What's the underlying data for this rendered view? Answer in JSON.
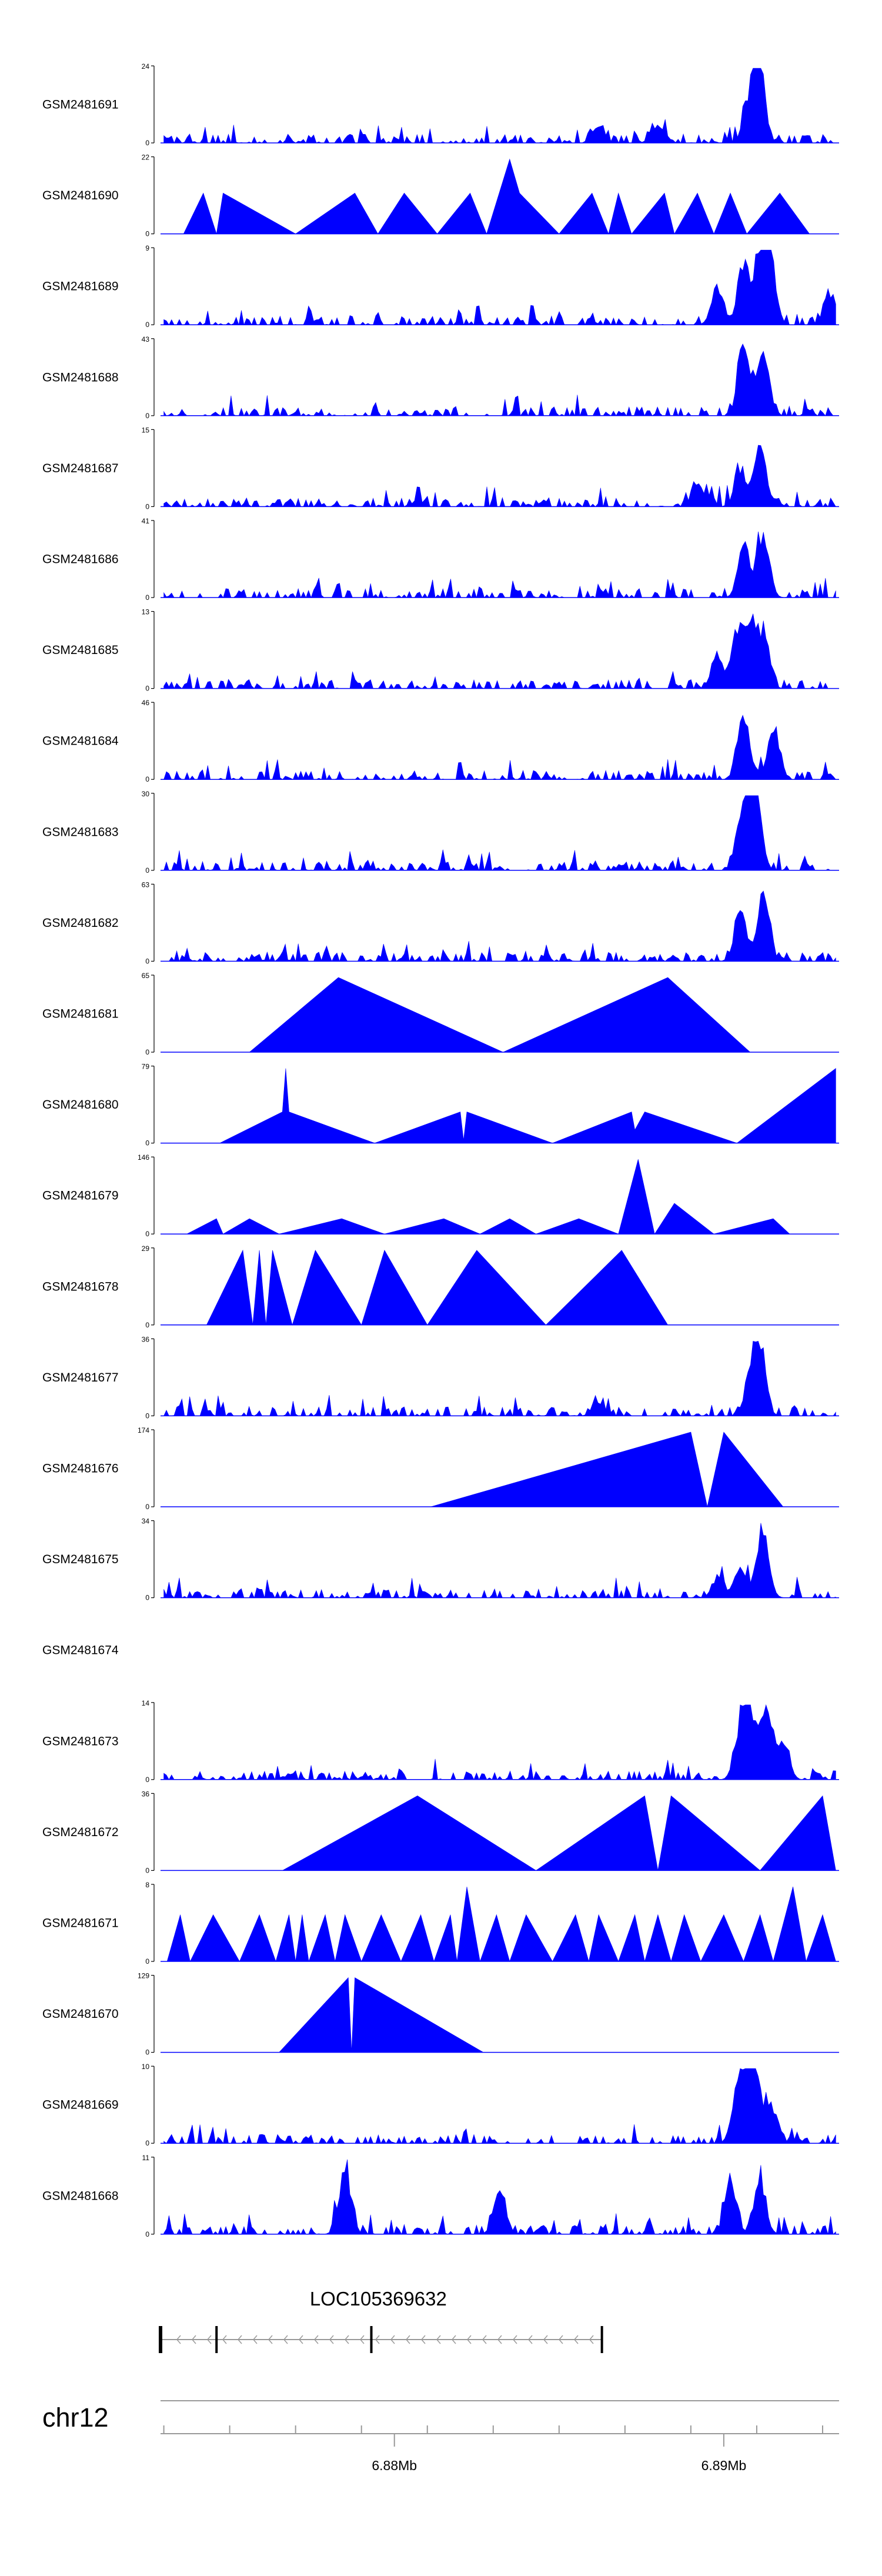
{
  "chart_data": {
    "type": "area",
    "title": "",
    "xlabel": "",
    "ylabel": "",
    "xlim": [
      6.8729,
      6.8935
    ],
    "x_unit": "Mb",
    "axis": {
      "chromosome": "chr12",
      "ticks": [
        6.873,
        6.875,
        6.877,
        6.879,
        6.881,
        6.883,
        6.885,
        6.887,
        6.889,
        6.891,
        6.893
      ],
      "tick_labels": [
        {
          "x": 6.88,
          "label": "6.88Mb"
        },
        {
          "x": 6.89,
          "label": "6.89Mb"
        }
      ]
    },
    "gene": {
      "name": "LOC105369632",
      "strand": "-",
      "start": 6.8729,
      "end": 6.8863,
      "exons": [
        6.8729,
        6.8746,
        6.8793,
        6.8863
      ]
    },
    "colors": {
      "signal": "#0000ff",
      "axis": "#000000",
      "ruler": "#999999"
    },
    "series": [
      {
        "name": "GSM2481691",
        "ymax": 24,
        "style": "spiky",
        "peaks": [
          [
            6.8879,
            3
          ],
          [
            6.8881,
            4
          ],
          [
            6.8907,
            8
          ],
          [
            6.891,
            24
          ],
          [
            6.8911,
            14
          ],
          [
            6.8862,
            6
          ]
        ]
      },
      {
        "name": "GSM2481690",
        "ymax": 22,
        "style": "tri",
        "points": [
          [
            6.8736,
            0
          ],
          [
            6.8742,
            12
          ],
          [
            6.8746,
            0
          ],
          [
            6.8748,
            12
          ],
          [
            6.877,
            0
          ],
          [
            6.8788,
            12
          ],
          [
            6.8795,
            0
          ],
          [
            6.8803,
            12
          ],
          [
            6.8813,
            0
          ],
          [
            6.8823,
            12
          ],
          [
            6.8828,
            0
          ],
          [
            6.8835,
            22
          ],
          [
            6.8838,
            12
          ],
          [
            6.885,
            0
          ],
          [
            6.886,
            12
          ],
          [
            6.8865,
            0
          ],
          [
            6.8868,
            12
          ],
          [
            6.8872,
            0
          ],
          [
            6.8882,
            12
          ],
          [
            6.8885,
            0
          ],
          [
            6.8892,
            12
          ],
          [
            6.8897,
            0
          ],
          [
            6.8902,
            12
          ],
          [
            6.8907,
            0
          ],
          [
            6.8917,
            12
          ],
          [
            6.8926,
            0
          ]
        ]
      },
      {
        "name": "GSM2481689",
        "ymax": 9,
        "style": "spiky",
        "peaks": [
          [
            6.8906,
            8
          ],
          [
            6.8911,
            9
          ],
          [
            6.8914,
            9
          ],
          [
            6.8898,
            5
          ],
          [
            6.8932,
            4
          ]
        ]
      },
      {
        "name": "GSM2481688",
        "ymax": 43,
        "style": "spiky",
        "peaks": [
          [
            6.8906,
            42
          ],
          [
            6.8912,
            41
          ]
        ]
      },
      {
        "name": "GSM2481687",
        "ymax": 15,
        "style": "spiky",
        "peaks": [
          [
            6.8911,
            15
          ],
          [
            6.8905,
            8
          ],
          [
            6.8892,
            5
          ]
        ]
      },
      {
        "name": "GSM2481686",
        "ymax": 41,
        "style": "spiky",
        "peaks": [
          [
            6.8912,
            40
          ],
          [
            6.8906,
            30
          ]
        ]
      },
      {
        "name": "GSM2481685",
        "ymax": 13,
        "style": "spiky",
        "peaks": [
          [
            6.8908,
            13
          ],
          [
            6.8904,
            10
          ],
          [
            6.8912,
            10
          ],
          [
            6.8898,
            6
          ]
        ]
      },
      {
        "name": "GSM2481684",
        "ymax": 46,
        "style": "spiky",
        "peaks": [
          [
            6.8906,
            45
          ],
          [
            6.8915,
            35
          ]
        ]
      },
      {
        "name": "GSM2481683",
        "ymax": 30,
        "style": "spiky",
        "peaks": [
          [
            6.8908,
            28
          ],
          [
            6.891,
            24
          ],
          [
            6.8905,
            18
          ]
        ]
      },
      {
        "name": "GSM2481682",
        "ymax": 63,
        "style": "spiky",
        "peaks": [
          [
            6.8912,
            60
          ],
          [
            6.8905,
            48
          ]
        ]
      },
      {
        "name": "GSM2481681",
        "ymax": 65,
        "style": "tri",
        "points": [
          [
            6.8756,
            0
          ],
          [
            6.8783,
            65
          ],
          [
            6.8833,
            0
          ],
          [
            6.8883,
            65
          ],
          [
            6.8908,
            0
          ]
        ]
      },
      {
        "name": "GSM2481680",
        "ymax": 79,
        "style": "tri",
        "points": [
          [
            6.8747,
            0
          ],
          [
            6.8766,
            33
          ],
          [
            6.8767,
            79
          ],
          [
            6.8768,
            33
          ],
          [
            6.8794,
            0
          ],
          [
            6.882,
            33
          ],
          [
            6.8821,
            3
          ],
          [
            6.8822,
            33
          ],
          [
            6.8848,
            0
          ],
          [
            6.8872,
            33
          ],
          [
            6.8873,
            14
          ],
          [
            6.8876,
            33
          ],
          [
            6.8904,
            0
          ],
          [
            6.8934,
            79
          ],
          [
            6.8934,
            0
          ]
        ]
      },
      {
        "name": "GSM2481679",
        "ymax": 146,
        "style": "tri",
        "points": [
          [
            6.8737,
            0
          ],
          [
            6.8746,
            30
          ],
          [
            6.8748,
            0
          ],
          [
            6.8756,
            30
          ],
          [
            6.8765,
            0
          ],
          [
            6.8784,
            30
          ],
          [
            6.8797,
            0
          ],
          [
            6.8815,
            30
          ],
          [
            6.8826,
            0
          ],
          [
            6.8835,
            30
          ],
          [
            6.8843,
            0
          ],
          [
            6.8856,
            30
          ],
          [
            6.8868,
            0
          ],
          [
            6.8874,
            146
          ],
          [
            6.8879,
            0
          ],
          [
            6.8885,
            60
          ],
          [
            6.8897,
            0
          ],
          [
            6.8915,
            30
          ],
          [
            6.892,
            0
          ]
        ]
      },
      {
        "name": "GSM2481678",
        "ymax": 29,
        "style": "tri",
        "points": [
          [
            6.8743,
            0
          ],
          [
            6.8754,
            29
          ],
          [
            6.8757,
            0
          ],
          [
            6.8759,
            29
          ],
          [
            6.8761,
            0
          ],
          [
            6.8763,
            29
          ],
          [
            6.8769,
            0
          ],
          [
            6.8776,
            29
          ],
          [
            6.879,
            0
          ],
          [
            6.8797,
            29
          ],
          [
            6.881,
            0
          ],
          [
            6.8825,
            29
          ],
          [
            6.8846,
            0
          ],
          [
            6.8869,
            29
          ],
          [
            6.8883,
            0
          ]
        ]
      },
      {
        "name": "GSM2481677",
        "ymax": 36,
        "style": "spiky",
        "peaks": [
          [
            6.8911,
            36
          ],
          [
            6.8908,
            20
          ],
          [
            6.8862,
            8
          ]
        ]
      },
      {
        "name": "GSM2481676",
        "ymax": 174,
        "style": "tri",
        "points": [
          [
            6.8811,
            0
          ],
          [
            6.889,
            174
          ],
          [
            6.8895,
            0
          ],
          [
            6.89,
            174
          ],
          [
            6.8918,
            0
          ]
        ]
      },
      {
        "name": "GSM2481675",
        "ymax": 34,
        "style": "spiky",
        "peaks": [
          [
            6.8912,
            34
          ],
          [
            6.8905,
            15
          ],
          [
            6.8898,
            8
          ]
        ]
      },
      {
        "name": "GSM2481674",
        "ymax": null,
        "style": "empty",
        "points": []
      },
      {
        "name": "GSM2481673",
        "ymax": 14,
        "style": "spiky",
        "peaks": [
          [
            6.8908,
            14
          ],
          [
            6.8913,
            14
          ],
          [
            6.8905,
            10
          ],
          [
            6.8918,
            8
          ]
        ]
      },
      {
        "name": "GSM2481672",
        "ymax": 36,
        "style": "tri",
        "points": [
          [
            6.8766,
            0
          ],
          [
            6.8807,
            36
          ],
          [
            6.8843,
            0
          ],
          [
            6.8876,
            36
          ],
          [
            6.888,
            0
          ],
          [
            6.8884,
            36
          ],
          [
            6.8911,
            0
          ],
          [
            6.893,
            36
          ],
          [
            6.8934,
            0
          ]
        ]
      },
      {
        "name": "GSM2481671",
        "ymax": 8,
        "style": "tri",
        "points": [
          [
            6.8731,
            0
          ],
          [
            6.8735,
            5
          ],
          [
            6.8738,
            0
          ],
          [
            6.8745,
            5
          ],
          [
            6.8753,
            0
          ],
          [
            6.8759,
            5
          ],
          [
            6.8764,
            0
          ],
          [
            6.8768,
            5
          ],
          [
            6.877,
            0
          ],
          [
            6.8772,
            5
          ],
          [
            6.8774,
            0
          ],
          [
            6.8779,
            5
          ],
          [
            6.8782,
            0
          ],
          [
            6.8785,
            5
          ],
          [
            6.879,
            0
          ],
          [
            6.8796,
            5
          ],
          [
            6.8802,
            0
          ],
          [
            6.8808,
            5
          ],
          [
            6.8812,
            0
          ],
          [
            6.8817,
            5
          ],
          [
            6.8819,
            0
          ],
          [
            6.8822,
            8
          ],
          [
            6.8826,
            0
          ],
          [
            6.8831,
            5
          ],
          [
            6.8835,
            0
          ],
          [
            6.884,
            5
          ],
          [
            6.8848,
            0
          ],
          [
            6.8855,
            5
          ],
          [
            6.8859,
            0
          ],
          [
            6.8862,
            5
          ],
          [
            6.8868,
            0
          ],
          [
            6.8873,
            5
          ],
          [
            6.8876,
            0
          ],
          [
            6.888,
            5
          ],
          [
            6.8884,
            0
          ],
          [
            6.8888,
            5
          ],
          [
            6.8893,
            0
          ],
          [
            6.89,
            5
          ],
          [
            6.8906,
            0
          ],
          [
            6.8911,
            5
          ],
          [
            6.8915,
            0
          ],
          [
            6.8921,
            8
          ],
          [
            6.8925,
            0
          ],
          [
            6.893,
            5
          ],
          [
            6.8934,
            0
          ]
        ]
      },
      {
        "name": "GSM2481670",
        "ymax": 129,
        "style": "tri",
        "points": [
          [
            6.8765,
            0
          ],
          [
            6.8786,
            129
          ],
          [
            6.8787,
            0
          ],
          [
            6.8788,
            129
          ],
          [
            6.8827,
            0
          ]
        ]
      },
      {
        "name": "GSM2481669",
        "ymax": 10,
        "style": "spiky",
        "peaks": [
          [
            6.8907,
            10
          ],
          [
            6.891,
            8
          ],
          [
            6.8904,
            6
          ],
          [
            6.8915,
            5
          ]
        ]
      },
      {
        "name": "GSM2481668",
        "ymax": 11,
        "style": "spiky",
        "peaks": [
          [
            6.8785,
            11
          ],
          [
            6.8832,
            8
          ],
          [
            6.8902,
            8
          ],
          [
            6.8911,
            9
          ]
        ]
      }
    ]
  }
}
